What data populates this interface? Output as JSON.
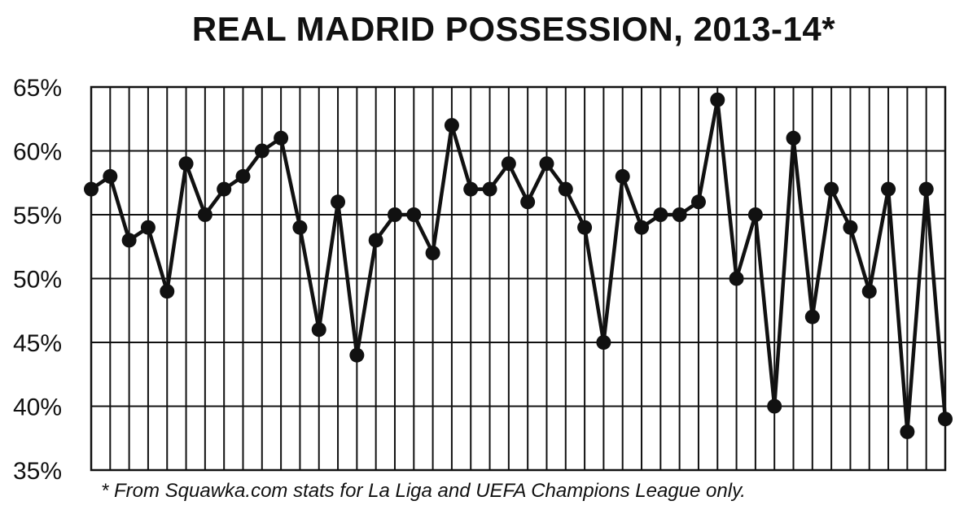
{
  "chart_data": {
    "type": "line",
    "title": "REAL MADRID POSSESSION, 2013-14*",
    "footnote": "* From Squawka.com stats for La Liga and UEFA Champions League only.",
    "xlabel": "",
    "ylabel": "",
    "ylim": [
      35,
      65
    ],
    "yticks": [
      65,
      60,
      55,
      50,
      45,
      40,
      35
    ],
    "ytick_labels": [
      "65%",
      "60%",
      "55%",
      "50%",
      "45%",
      "40%",
      "35%"
    ],
    "grid": true,
    "series": [
      {
        "values": [
          57,
          58,
          53,
          54,
          49,
          59,
          55,
          57,
          58,
          60,
          61,
          54,
          46,
          56,
          44,
          53,
          55,
          55,
          52,
          62,
          57,
          57,
          59,
          56,
          59,
          57,
          54,
          45,
          58,
          54,
          55,
          55,
          56,
          64,
          50,
          55,
          40,
          61,
          47,
          57,
          54,
          49,
          57,
          38,
          57,
          39
        ]
      }
    ],
    "colors": {
      "line": "#111111",
      "grid": "#111111",
      "background": "#ffffff"
    }
  }
}
